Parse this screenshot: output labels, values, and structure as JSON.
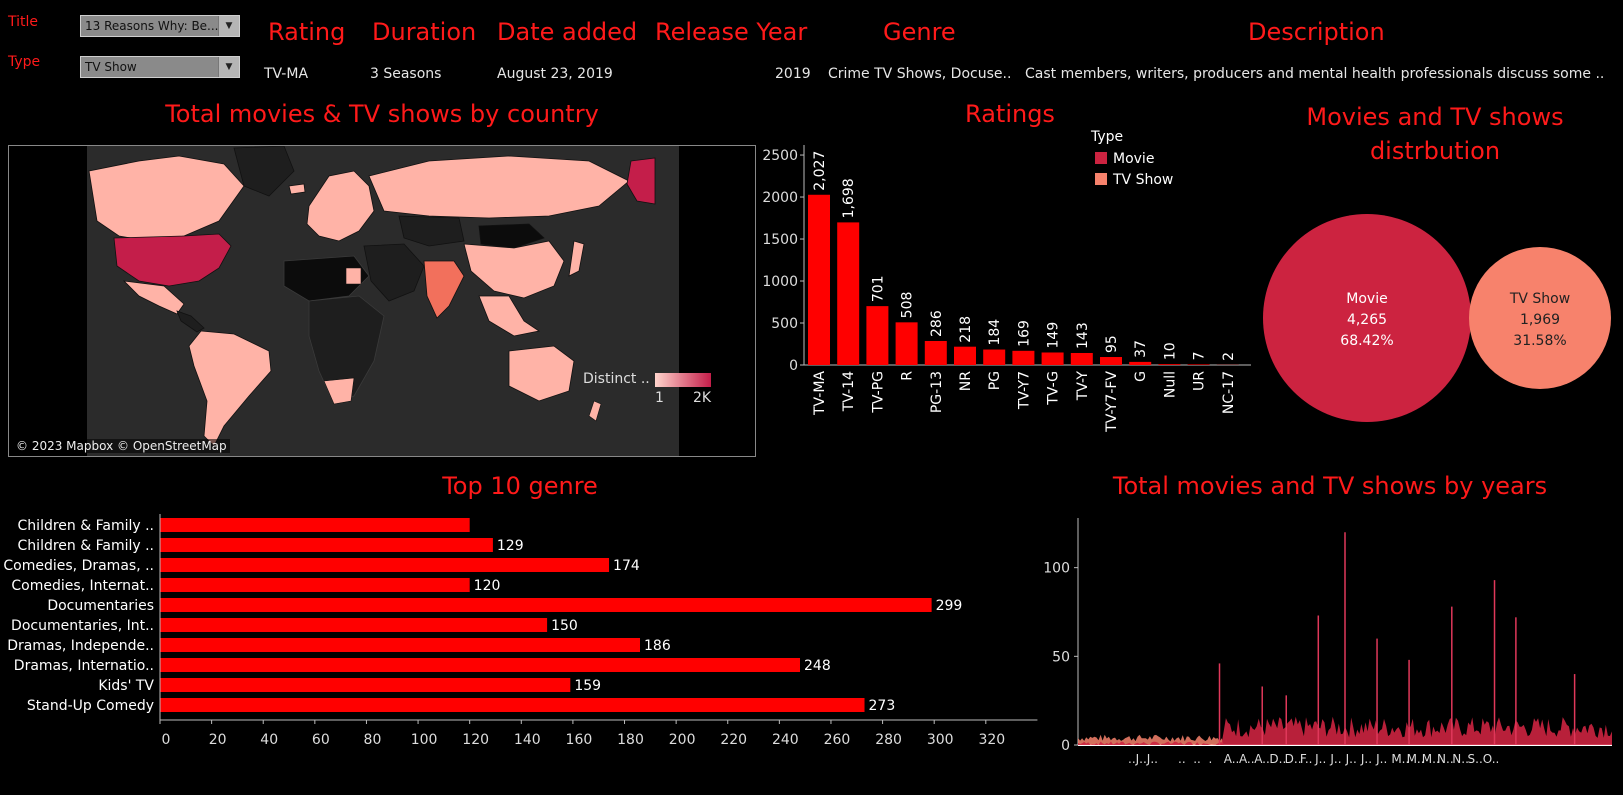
{
  "filters": {
    "title_label": "Title",
    "title_value": "13 Reasons Why: Be...",
    "type_label": "Type",
    "type_value": "TV Show"
  },
  "details": {
    "headers": {
      "rating": "Rating",
      "duration": "Duration",
      "date_added": "Date added",
      "release_year": "Release Year",
      "genre": "Genre",
      "description": "Description"
    },
    "values": {
      "rating": "TV-MA",
      "duration": "3 Seasons",
      "date_added": "August 23, 2019",
      "release_year": "2019",
      "genre": "Crime TV Shows, Docuse..",
      "description": "Cast members, writers, producers and mental health professionals discuss some .."
    }
  },
  "map": {
    "title": "Total movies & TV shows by country",
    "attribution": "© 2023 Mapbox © OpenStreetMap",
    "legend_title": "Distinct ..",
    "legend_min": "1",
    "legend_max": "2K",
    "colors": {
      "low": "#ffb3a7",
      "high": "#c41e4a",
      "mid": "#f2705c",
      "land_none": "#1e1e1e",
      "ocean": "#2b2b2b"
    }
  },
  "colors": {
    "bar": "#ff0000",
    "movie": "#cc2340",
    "tvshow": "#f7826c",
    "axis": "#bbbbbb"
  },
  "chart_data": [
    {
      "type": "bar",
      "title": "Ratings",
      "categories": [
        "TV-MA",
        "TV-14",
        "TV-PG",
        "R",
        "PG-13",
        "NR",
        "PG",
        "TV-Y7",
        "TV-G",
        "TV-Y",
        "TV-Y7-FV",
        "G",
        "Null",
        "UR",
        "NC-17"
      ],
      "values": [
        2027,
        1698,
        701,
        508,
        286,
        218,
        184,
        169,
        149,
        143,
        95,
        37,
        10,
        7,
        2
      ],
      "value_labels": [
        "2,027",
        "1,698",
        "701",
        "508",
        "286",
        "218",
        "184",
        "169",
        "149",
        "143",
        "95",
        "37",
        "10",
        "7",
        "2"
      ],
      "y_ticks": [
        "0",
        "500",
        "1000",
        "1500",
        "2000",
        "2500"
      ],
      "ylim": [
        0,
        2700
      ],
      "legend_title": "Type",
      "legend": [
        "Movie",
        "TV Show"
      ]
    },
    {
      "type": "pie",
      "title": "Movies and TV shows distrbution",
      "slices": [
        {
          "name": "Movie",
          "value": "4,265",
          "pct": "68.42%"
        },
        {
          "name": "TV Show",
          "value": "1,969",
          "pct": "31.58%"
        }
      ]
    },
    {
      "type": "bar",
      "orientation": "horizontal",
      "title": "Top 10 genre",
      "categories": [
        "Children & Family ..",
        "Children & Family ..",
        "Comedies, Dramas, ..",
        "Comedies, Internat..",
        "Documentaries",
        "Documentaries, Int..",
        "Dramas, Independe..",
        "Dramas, Internatio..",
        "Kids' TV",
        "Stand-Up Comedy"
      ],
      "values": [
        120,
        129,
        174,
        120,
        299,
        150,
        186,
        248,
        159,
        273
      ],
      "value_labels": [
        "",
        "129",
        "174",
        "120",
        "299",
        "150",
        "186",
        "248",
        "159",
        "273"
      ],
      "x_ticks": [
        "0",
        "20",
        "40",
        "60",
        "80",
        "100",
        "120",
        "140",
        "160",
        "180",
        "200",
        "220",
        "240",
        "260",
        "280",
        "300",
        "320"
      ],
      "xlim": [
        0,
        330
      ]
    },
    {
      "type": "area",
      "title": "Total movies and TV shows by years",
      "y_ticks": [
        "0",
        "50",
        "100"
      ],
      "ylim": [
        0,
        128
      ],
      "x_tick_labels": [
        "..J..J..",
        "..",
        "..",
        ".",
        "A..",
        "A..",
        "A..",
        "D..",
        "D..",
        "F..",
        "J..",
        "J..",
        "J..",
        "J..",
        "J..",
        "M..",
        "M..",
        "M..",
        "N..",
        "N..",
        "S..",
        "O.."
      ],
      "peaks": [
        {
          "i": 0.265,
          "v": 46
        },
        {
          "i": 0.345,
          "v": 33
        },
        {
          "i": 0.39,
          "v": 28
        },
        {
          "i": 0.45,
          "v": 73
        },
        {
          "i": 0.5,
          "v": 120
        },
        {
          "i": 0.56,
          "v": 60
        },
        {
          "i": 0.62,
          "v": 48
        },
        {
          "i": 0.7,
          "v": 78
        },
        {
          "i": 0.78,
          "v": 93
        },
        {
          "i": 0.82,
          "v": 72
        },
        {
          "i": 0.93,
          "v": 40
        }
      ]
    }
  ]
}
